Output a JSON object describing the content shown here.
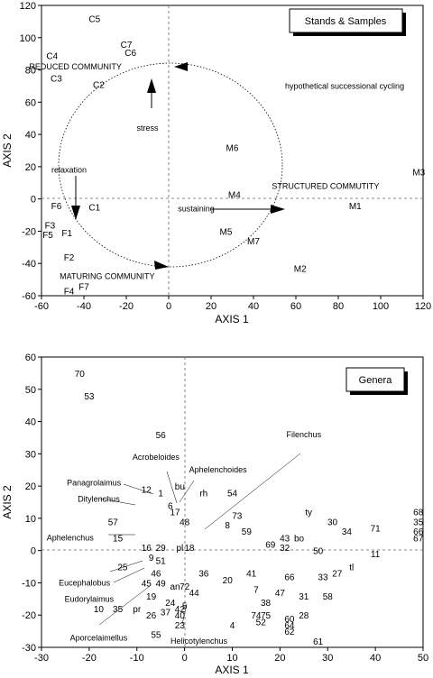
{
  "chart_data": [
    {
      "type": "scatter",
      "title": "Stands & Samples",
      "xlabel": "AXIS 1",
      "ylabel": "AXIS 2",
      "xlim": [
        -60,
        120
      ],
      "ylim": [
        -60,
        120
      ],
      "xticks": [
        "-60",
        "-40",
        "-20",
        "0",
        "20",
        "40",
        "60",
        "80",
        "100",
        "120"
      ],
      "yticks": [
        "120",
        "100",
        "80",
        "60",
        "40",
        "20",
        "0",
        "-20",
        "-40",
        "-60"
      ],
      "grid": "dashed zero lines",
      "points": [
        {
          "label": "C5",
          "x": -35,
          "y": 112
        },
        {
          "label": "C7",
          "x": -20,
          "y": 96
        },
        {
          "label": "C6",
          "x": -18,
          "y": 91
        },
        {
          "label": "C4",
          "x": -55,
          "y": 89
        },
        {
          "label": "C3",
          "x": -53,
          "y": 75
        },
        {
          "label": "C2",
          "x": -33,
          "y": 71
        },
        {
          "label": "M6",
          "x": 30,
          "y": 32
        },
        {
          "label": "M3",
          "x": 118,
          "y": 17
        },
        {
          "label": "M4",
          "x": 31,
          "y": 3
        },
        {
          "label": "M1",
          "x": 88,
          "y": -4
        },
        {
          "label": "M5",
          "x": 27,
          "y": -20
        },
        {
          "label": "M7",
          "x": 40,
          "y": -26
        },
        {
          "label": "M2",
          "x": 62,
          "y": -43
        },
        {
          "label": "F6",
          "x": -53,
          "y": -4
        },
        {
          "label": "C1",
          "x": -35,
          "y": -5
        },
        {
          "label": "F3",
          "x": -56,
          "y": -16
        },
        {
          "label": "F5",
          "x": -57,
          "y": -22
        },
        {
          "label": "F1",
          "x": -48,
          "y": -21
        },
        {
          "label": "F2",
          "x": -47,
          "y": -36
        },
        {
          "label": "F7",
          "x": -40,
          "y": -54
        },
        {
          "label": "F4",
          "x": -47,
          "y": -57
        }
      ],
      "annotations": [
        {
          "text": "REDUCED COMMUNITY",
          "x": -44,
          "y": 82
        },
        {
          "text": "hypothetical successional cycling",
          "x": 83,
          "y": 70
        },
        {
          "text": "stress",
          "x": -10,
          "y": 44
        },
        {
          "text": "relaxation",
          "x": -47,
          "y": 18
        },
        {
          "text": "STRUCTURED COMMUTITY",
          "x": 74,
          "y": 8
        },
        {
          "text": "sustaining",
          "x": 13,
          "y": -6
        },
        {
          "text": "MATURING COMMUNITY",
          "x": -29,
          "y": -48
        }
      ]
    },
    {
      "type": "scatter",
      "title": "Genera",
      "xlabel": "AXIS 1",
      "ylabel": "AXIS 2",
      "xlim": [
        -30,
        50
      ],
      "ylim": [
        -30,
        60
      ],
      "xticks": [
        "-30",
        "-20",
        "-10",
        "0",
        "10",
        "20",
        "30",
        "40",
        "50"
      ],
      "yticks": [
        "60",
        "50",
        "40",
        "30",
        "20",
        "10",
        "0",
        "-10",
        "-20",
        "-30"
      ],
      "grid": "dashed zero lines",
      "points": [
        {
          "label": "70",
          "x": -22,
          "y": 55
        },
        {
          "label": "53",
          "x": -20,
          "y": 48
        },
        {
          "label": "56",
          "x": -5,
          "y": 36
        },
        {
          "label": "12",
          "x": -8,
          "y": 19
        },
        {
          "label": "1",
          "x": -5,
          "y": 18
        },
        {
          "label": "bu",
          "x": -1,
          "y": 20
        },
        {
          "label": "rh",
          "x": 4,
          "y": 18
        },
        {
          "label": "54",
          "x": 10,
          "y": 18
        },
        {
          "label": "6",
          "x": -3,
          "y": 14
        },
        {
          "label": "17",
          "x": -2,
          "y": 12
        },
        {
          "label": "73",
          "x": 11,
          "y": 11
        },
        {
          "label": "ty",
          "x": 26,
          "y": 12
        },
        {
          "label": "68",
          "x": 49,
          "y": 12
        },
        {
          "label": "57",
          "x": -15,
          "y": 9
        },
        {
          "label": "48",
          "x": 0,
          "y": 9
        },
        {
          "label": "8",
          "x": 9,
          "y": 8
        },
        {
          "label": "30",
          "x": 31,
          "y": 9
        },
        {
          "label": "35",
          "x": 49,
          "y": 9
        },
        {
          "label": "59",
          "x": 13,
          "y": 6
        },
        {
          "label": "34",
          "x": 34,
          "y": 6
        },
        {
          "label": "71",
          "x": 40,
          "y": 7
        },
        {
          "label": "66",
          "x": 49,
          "y": 6
        },
        {
          "label": "15",
          "x": -14,
          "y": 4
        },
        {
          "label": "43",
          "x": 21,
          "y": 4
        },
        {
          "label": "bo",
          "x": 24,
          "y": 4
        },
        {
          "label": "67",
          "x": 49,
          "y": 4
        },
        {
          "label": "16",
          "x": -8,
          "y": 1
        },
        {
          "label": "29",
          "x": -5,
          "y": 1
        },
        {
          "label": "pl",
          "x": -1,
          "y": 1
        },
        {
          "label": "18",
          "x": 1,
          "y": 1
        },
        {
          "label": "69",
          "x": 18,
          "y": 2
        },
        {
          "label": "32",
          "x": 21,
          "y": 1
        },
        {
          "label": "50",
          "x": 28,
          "y": 0
        },
        {
          "label": "11",
          "x": 40,
          "y": -1
        },
        {
          "label": "9",
          "x": -7,
          "y": -2
        },
        {
          "label": "51",
          "x": -5,
          "y": -3
        },
        {
          "label": "25",
          "x": -13,
          "y": -5
        },
        {
          "label": "tl",
          "x": 35,
          "y": -5
        },
        {
          "label": "46",
          "x": -6,
          "y": -7
        },
        {
          "label": "36",
          "x": 4,
          "y": -7
        },
        {
          "label": "41",
          "x": 14,
          "y": -7
        },
        {
          "label": "66",
          "x": 22,
          "y": -8
        },
        {
          "label": "27",
          "x": 32,
          "y": -7
        },
        {
          "label": "33",
          "x": 29,
          "y": -8
        },
        {
          "label": "20",
          "x": 9,
          "y": -9
        },
        {
          "label": "45",
          "x": -8,
          "y": -10
        },
        {
          "label": "49",
          "x": -5,
          "y": -10
        },
        {
          "label": "an",
          "x": -2,
          "y": -11
        },
        {
          "label": "72",
          "x": 0,
          "y": -11
        },
        {
          "label": "7",
          "x": 15,
          "y": -12
        },
        {
          "label": "47",
          "x": 20,
          "y": -13
        },
        {
          "label": "31",
          "x": 25,
          "y": -14
        },
        {
          "label": "58",
          "x": 30,
          "y": -14
        },
        {
          "label": "44",
          "x": 2,
          "y": -13
        },
        {
          "label": "19",
          "x": -7,
          "y": -14
        },
        {
          "label": "24",
          "x": -3,
          "y": -16
        },
        {
          "label": "5",
          "x": 0,
          "y": -17
        },
        {
          "label": "38",
          "x": 17,
          "y": -16
        },
        {
          "label": "10",
          "x": -18,
          "y": -18
        },
        {
          "label": "35",
          "x": -14,
          "y": -18
        },
        {
          "label": "pr",
          "x": -10,
          "y": -18
        },
        {
          "label": "37",
          "x": -4,
          "y": -19
        },
        {
          "label": "42",
          "x": -1,
          "y": -18
        },
        {
          "label": "26",
          "x": -7,
          "y": -20
        },
        {
          "label": "40",
          "x": -1,
          "y": -20
        },
        {
          "label": "74",
          "x": 15,
          "y": -20
        },
        {
          "label": "75",
          "x": 17,
          "y": -20
        },
        {
          "label": "60",
          "x": 22,
          "y": -21
        },
        {
          "label": "28",
          "x": 25,
          "y": -20
        },
        {
          "label": "23",
          "x": -1,
          "y": -23
        },
        {
          "label": "4",
          "x": 10,
          "y": -23
        },
        {
          "label": "52",
          "x": 16,
          "y": -22
        },
        {
          "label": "64",
          "x": 22,
          "y": -23
        },
        {
          "label": "62",
          "x": 22,
          "y": -25
        },
        {
          "label": "55",
          "x": -6,
          "y": -26
        },
        {
          "label": "61",
          "x": 28,
          "y": -28
        }
      ],
      "annotations": [
        {
          "text": "Filenchus",
          "x": 25,
          "y": 36
        },
        {
          "text": "Acrobeloides",
          "x": -6,
          "y": 29
        },
        {
          "text": "Aphelenchoides",
          "x": 7,
          "y": 25
        },
        {
          "text": "Panagrolaimus",
          "x": -19,
          "y": 21
        },
        {
          "text": "Ditylenchus",
          "x": -18,
          "y": 16
        },
        {
          "text": "Aphelenchus",
          "x": -24,
          "y": 4
        },
        {
          "text": "Eucephalobus",
          "x": -21,
          "y": -10
        },
        {
          "text": "Eudorylaimus",
          "x": -20,
          "y": -15
        },
        {
          "text": "Aporcelaimellus",
          "x": -18,
          "y": -27
        },
        {
          "text": "Helicotylenchus",
          "x": 3,
          "y": -28
        }
      ]
    }
  ]
}
